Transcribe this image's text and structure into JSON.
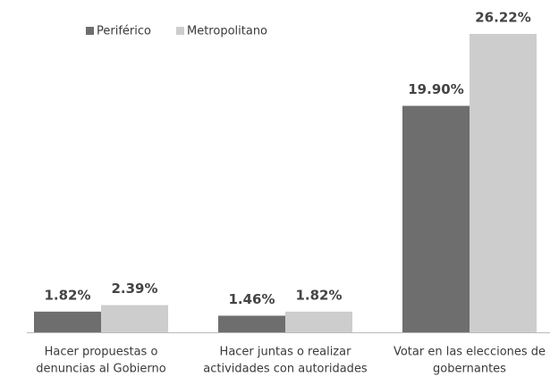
{
  "chart_data": {
    "type": "bar",
    "categories": [
      [
        "Hacer propuestas o",
        "denuncias al Gobierno"
      ],
      [
        "Hacer juntas o realizar",
        "actividades con autoridades"
      ],
      [
        "Votar en las elecciones de",
        "gobernantes"
      ]
    ],
    "series": [
      {
        "name": "Periférico",
        "color": "#6e6e6e",
        "values": [
          1.82,
          1.46,
          19.9
        ],
        "value_labels": [
          "1.82%",
          "1.46%",
          "19.90%"
        ]
      },
      {
        "name": "Metropolitano",
        "color": "#cdcdcd",
        "values": [
          2.39,
          1.82,
          26.22
        ],
        "value_labels": [
          "2.39%",
          "1.82%",
          "26.22%"
        ]
      }
    ]
  }
}
